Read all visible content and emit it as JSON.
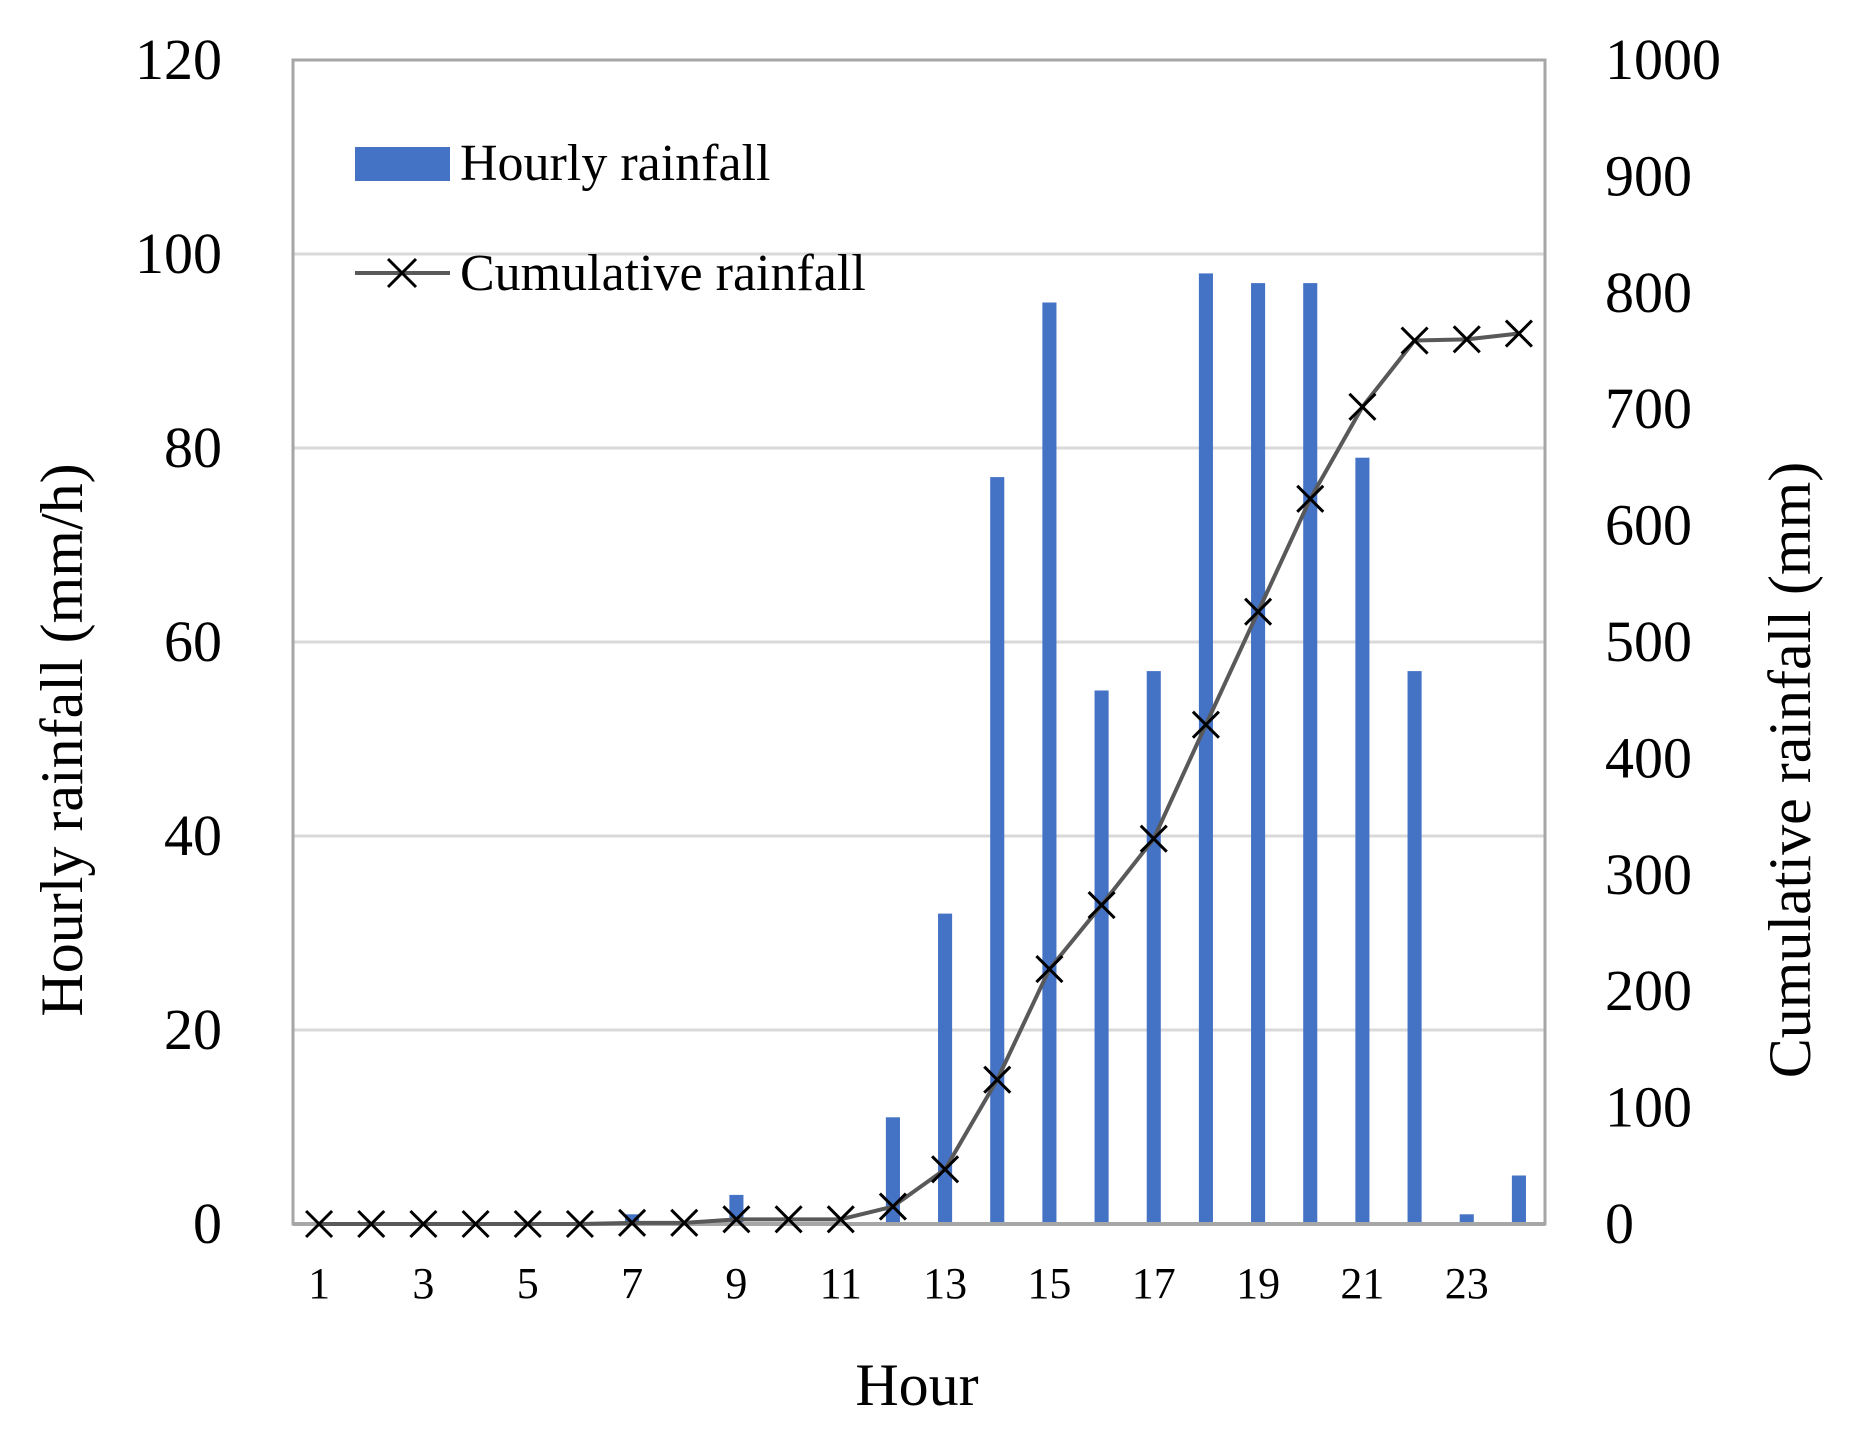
{
  "chart_data": {
    "type": "bar",
    "title": "",
    "xlabel": "Hour",
    "ylabel": "Hourly rainfall (mm/h)",
    "y2label": "Cumulative rainfall (mm)",
    "categories": [
      1,
      2,
      3,
      4,
      5,
      6,
      7,
      8,
      9,
      10,
      11,
      12,
      13,
      14,
      15,
      16,
      17,
      18,
      19,
      20,
      21,
      22,
      23,
      24
    ],
    "x_tick_labels": [
      "1",
      "3",
      "5",
      "7",
      "9",
      "11",
      "13",
      "15",
      "17",
      "19",
      "21",
      "23"
    ],
    "ylim": [
      0,
      120
    ],
    "y_ticks": [
      "0",
      "20",
      "40",
      "60",
      "80",
      "100",
      "120"
    ],
    "y2lim": [
      0,
      1000
    ],
    "y2_ticks": [
      "0",
      "100",
      "200",
      "300",
      "400",
      "500",
      "600",
      "700",
      "800",
      "900",
      "1000"
    ],
    "grid": true,
    "legend_position": "top-left",
    "series": [
      {
        "name": "Hourly rainfall",
        "type": "bar",
        "axis": "left",
        "color": "#4472C4",
        "values": [
          0,
          0,
          0,
          0,
          0,
          0,
          1,
          0,
          3,
          0,
          0,
          11,
          32,
          77,
          95,
          55,
          57,
          98,
          97,
          97,
          79,
          57,
          1,
          5
        ]
      },
      {
        "name": "Cumulative rainfall",
        "type": "line",
        "axis": "right",
        "color": "#595959",
        "marker": "x",
        "values": [
          0,
          0,
          0,
          0,
          0,
          0,
          1,
          1,
          4,
          4,
          4,
          15,
          47,
          124,
          219,
          274,
          331,
          429,
          526,
          623,
          702,
          759,
          760,
          765
        ]
      }
    ]
  }
}
